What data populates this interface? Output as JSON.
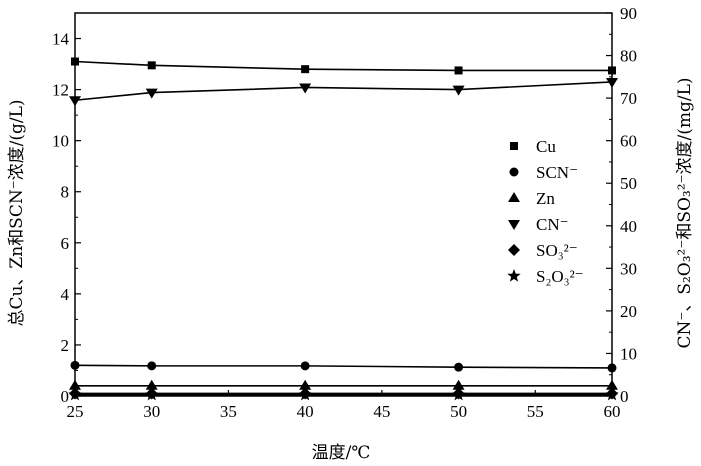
{
  "chart_data": {
    "type": "line",
    "xlabel": "温度/℃",
    "ylabel_left": "总Cu、Zn和SCN⁻浓度/(g/L)",
    "ylabel_right": "CN⁻、S₂O₃²⁻和SO₃²⁻浓度/(mg/L)",
    "x": [
      25,
      30,
      40,
      50,
      60
    ],
    "xlim": [
      25,
      60
    ],
    "xticks": [
      25,
      30,
      35,
      40,
      45,
      50,
      55,
      60
    ],
    "ylim_left": [
      0,
      15
    ],
    "yticks_left": [
      0,
      2,
      4,
      6,
      8,
      10,
      12,
      14
    ],
    "ylim_right": [
      0,
      90
    ],
    "yticks_right": [
      0,
      10,
      20,
      30,
      40,
      50,
      60,
      70,
      80,
      90
    ],
    "grid": false,
    "legend_position": "right",
    "series": [
      {
        "name": "Cu",
        "marker": "square",
        "axis": "left",
        "values": [
          13.1,
          12.95,
          12.8,
          12.75,
          12.75
        ]
      },
      {
        "name": "SCN⁻",
        "marker": "circle",
        "axis": "left",
        "values": [
          1.2,
          1.18,
          1.18,
          1.13,
          1.1
        ]
      },
      {
        "name": "Zn",
        "marker": "triangle-up",
        "axis": "left",
        "values": [
          0.4,
          0.4,
          0.4,
          0.4,
          0.4
        ]
      },
      {
        "name": "CN⁻",
        "marker": "triangle-down",
        "axis": "right",
        "values": [
          69.5,
          71.3,
          72.5,
          72.0,
          73.8
        ]
      },
      {
        "name": "SO₃²⁻",
        "marker": "diamond",
        "axis": "right",
        "values": [
          0.6,
          0.6,
          0.6,
          0.6,
          0.6
        ]
      },
      {
        "name": "S₂O₃²⁻",
        "marker": "star",
        "axis": "right",
        "values": [
          0.3,
          0.3,
          0.3,
          0.3,
          0.3
        ]
      }
    ]
  }
}
